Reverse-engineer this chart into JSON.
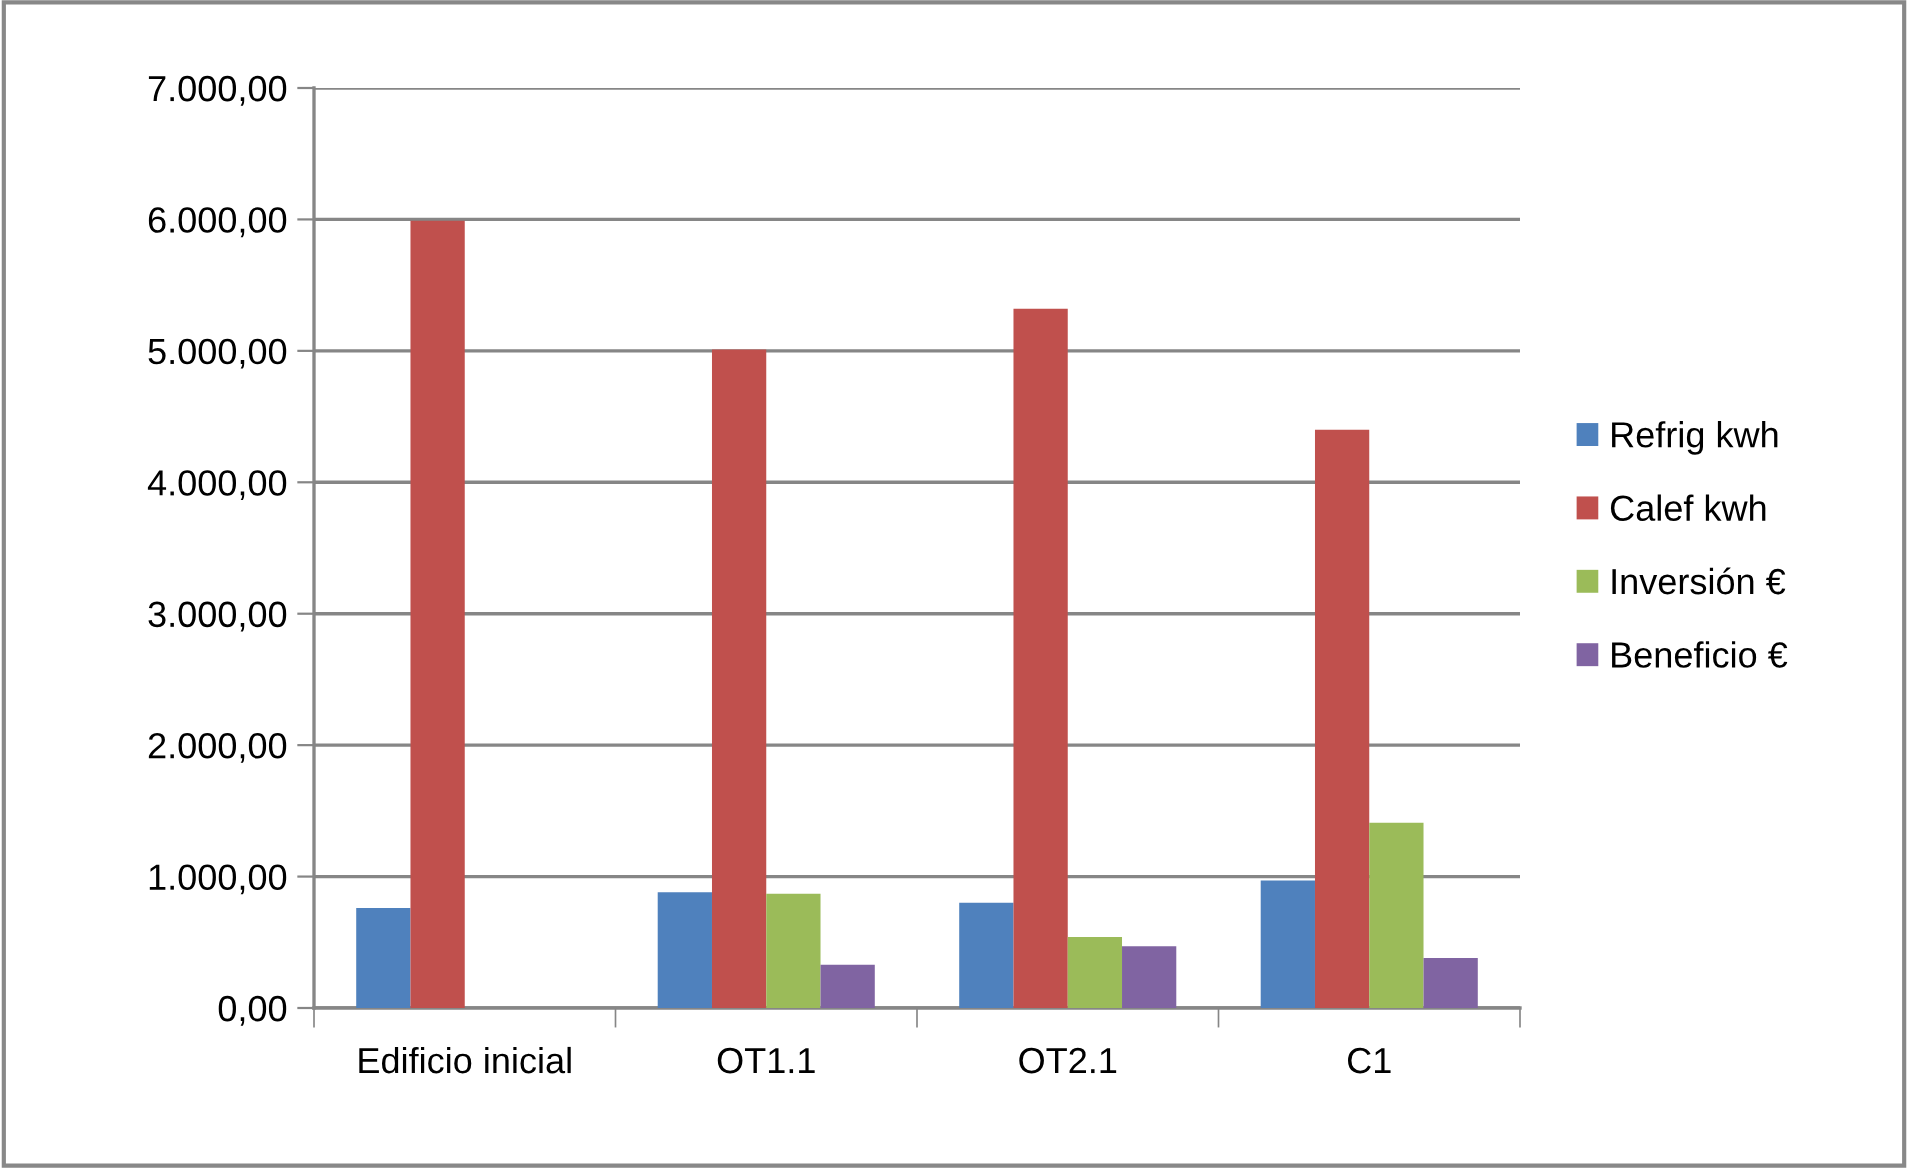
{
  "chart_data": {
    "type": "bar",
    "categories": [
      "Edificio inicial",
      "OT1.1",
      "OT2.1",
      "C1"
    ],
    "series": [
      {
        "name": "Refrig kwh",
        "color": "#4f81bd",
        "values": [
          760,
          880,
          800,
          970
        ]
      },
      {
        "name": "Calef kwh",
        "color": "#c0504d",
        "values": [
          5990,
          5010,
          5320,
          4400
        ]
      },
      {
        "name": "Inversión €",
        "color": "#9bbb59",
        "values": [
          null,
          870,
          540,
          1410
        ]
      },
      {
        "name": "Beneficio €",
        "color": "#8064a2",
        "values": [
          null,
          330,
          470,
          380
        ]
      }
    ],
    "ylim": [
      0,
      7000
    ],
    "yticks": [
      {
        "value": 0,
        "label": "0,00"
      },
      {
        "value": 1000,
        "label": "1.000,00"
      },
      {
        "value": 2000,
        "label": "2.000,00"
      },
      {
        "value": 3000,
        "label": "3.000,00"
      },
      {
        "value": 4000,
        "label": "4.000,00"
      },
      {
        "value": 5000,
        "label": "5.000,00"
      },
      {
        "value": 6000,
        "label": "6.000,00"
      },
      {
        "value": 7000,
        "label": "7.000,00"
      }
    ],
    "grid": "y",
    "legend": "right"
  }
}
